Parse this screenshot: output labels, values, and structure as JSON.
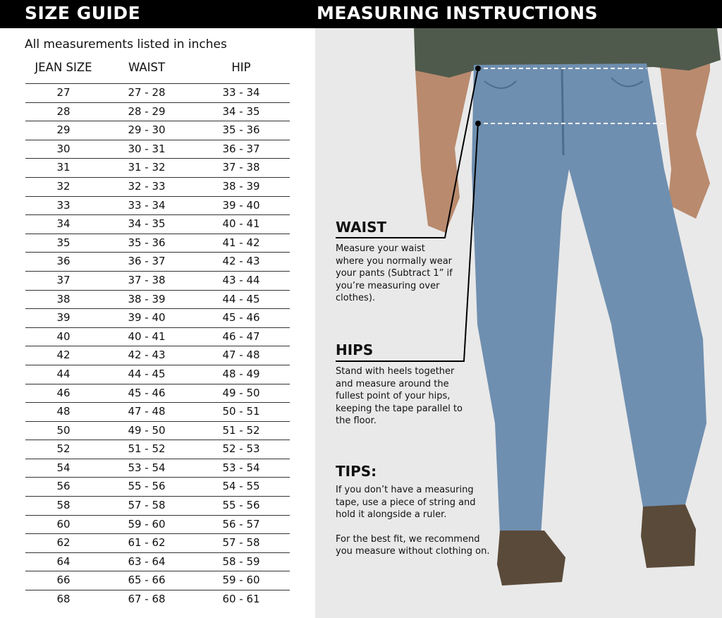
{
  "header": {
    "size_guide_title": "SIZE GUIDE",
    "instructions_title": "MEASURING INSTRUCTIONS"
  },
  "size_table": {
    "note": "All measurements listed in inches",
    "columns": [
      "JEAN SIZE",
      "WAIST",
      "HIP"
    ],
    "rows": [
      [
        "27",
        "27 - 28",
        "33 - 34"
      ],
      [
        "28",
        "28 - 29",
        "34 - 35"
      ],
      [
        "29",
        "29 - 30",
        "35 - 36"
      ],
      [
        "30",
        "30 - 31",
        "36 - 37"
      ],
      [
        "31",
        "31 - 32",
        "37 - 38"
      ],
      [
        "32",
        "32 - 33",
        "38 - 39"
      ],
      [
        "33",
        "33 - 34",
        "39 - 40"
      ],
      [
        "34",
        "34 - 35",
        "40 - 41"
      ],
      [
        "35",
        "35 - 36",
        "41 - 42"
      ],
      [
        "36",
        "36 - 37",
        "42 - 43"
      ],
      [
        "37",
        "37 - 38",
        "43 - 44"
      ],
      [
        "38",
        "38 - 39",
        "44 - 45"
      ],
      [
        "39",
        "39 - 40",
        "45 - 46"
      ],
      [
        "40",
        "40 - 41",
        "46 - 47"
      ],
      [
        "42",
        "42 - 43",
        "47 - 48"
      ],
      [
        "44",
        "44 - 45",
        "48 - 49"
      ],
      [
        "46",
        "45 - 46",
        "49 - 50"
      ],
      [
        "48",
        "47 - 48",
        "50 - 51"
      ],
      [
        "50",
        "49 - 50",
        "51 - 52"
      ],
      [
        "52",
        "51 - 52",
        "52 - 53"
      ],
      [
        "54",
        "53 - 54",
        "53 - 54"
      ],
      [
        "56",
        "55 - 56",
        "54 - 55"
      ],
      [
        "58",
        "57 - 58",
        "55 - 56"
      ],
      [
        "60",
        "59 - 60",
        "56 - 57"
      ],
      [
        "62",
        "61 - 62",
        "57 - 58"
      ],
      [
        "64",
        "63 - 64",
        "58 - 59"
      ],
      [
        "66",
        "65 - 66",
        "59 - 60"
      ],
      [
        "68",
        "67 - 68",
        "60 - 61"
      ]
    ]
  },
  "instructions": {
    "waist": {
      "title": "WAIST",
      "text": "Measure your waist where you normally wear your pants (Subtract 1” if you’re measuring over clothes)."
    },
    "hips": {
      "title": "HIPS",
      "text": "Stand with heels together and measure around the fullest point of your hips, keeping the tape parallel to the floor."
    },
    "tips": {
      "title": "TIPS:",
      "text1": "If you don’t have a measuring tape, use a piece of string and hold it alongside a ruler.",
      "text2": "For the best fit, we recommend you measure without clothing on."
    }
  },
  "colors": {
    "header_bg": "#000000",
    "panel_bg": "#e9e9e9",
    "denim": "#6f8fb0",
    "shirt": "#4f5a4c",
    "shoes": "#5a4a3a"
  }
}
